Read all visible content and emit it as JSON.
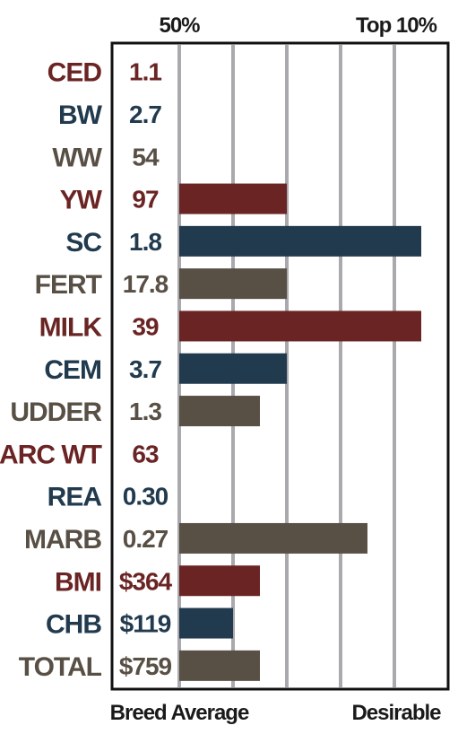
{
  "header": {
    "left": "50%",
    "right": "Top 10%"
  },
  "footer": {
    "left": "Breed Average",
    "right": "Desirable"
  },
  "colors": {
    "red": "#6b2424",
    "blue": "#213a4e",
    "gray": "#584f45",
    "grid": "#a9a9ae",
    "frame": "#111111"
  },
  "chart_data": {
    "type": "bar",
    "orientation": "horizontal",
    "scale": "percentile rank (0 = breed average, 4 = top 10%)",
    "grid_lines": 5,
    "rows": [
      {
        "label": "CED",
        "value": "1.1",
        "bar": 0,
        "color": "red"
      },
      {
        "label": "BW",
        "value": "2.7",
        "bar": 0,
        "color": "blue"
      },
      {
        "label": "WW",
        "value": "54",
        "bar": 0,
        "color": "gray"
      },
      {
        "label": "YW",
        "value": "97",
        "bar": 2,
        "color": "red"
      },
      {
        "label": "SC",
        "value": "1.8",
        "bar": 4.5,
        "color": "blue"
      },
      {
        "label": "FERT",
        "value": "17.8",
        "bar": 2,
        "color": "gray"
      },
      {
        "label": "MILK",
        "value": "39",
        "bar": 4.5,
        "color": "red"
      },
      {
        "label": "CEM",
        "value": "3.7",
        "bar": 2,
        "color": "blue"
      },
      {
        "label": "UDDER",
        "value": "1.3",
        "bar": 1.5,
        "color": "gray"
      },
      {
        "label": "CARC WT",
        "value": "63",
        "bar": 0,
        "color": "red"
      },
      {
        "label": "REA",
        "value": "0.30",
        "bar": 0,
        "color": "blue"
      },
      {
        "label": "MARB",
        "value": "0.27",
        "bar": 3.5,
        "color": "gray"
      },
      {
        "label": "BMI",
        "value": "$364",
        "bar": 1.5,
        "color": "red"
      },
      {
        "label": "CHB",
        "value": "$119",
        "bar": 1,
        "color": "blue"
      },
      {
        "label": "TOTAL",
        "value": "$759",
        "bar": 1.5,
        "color": "gray"
      }
    ]
  }
}
